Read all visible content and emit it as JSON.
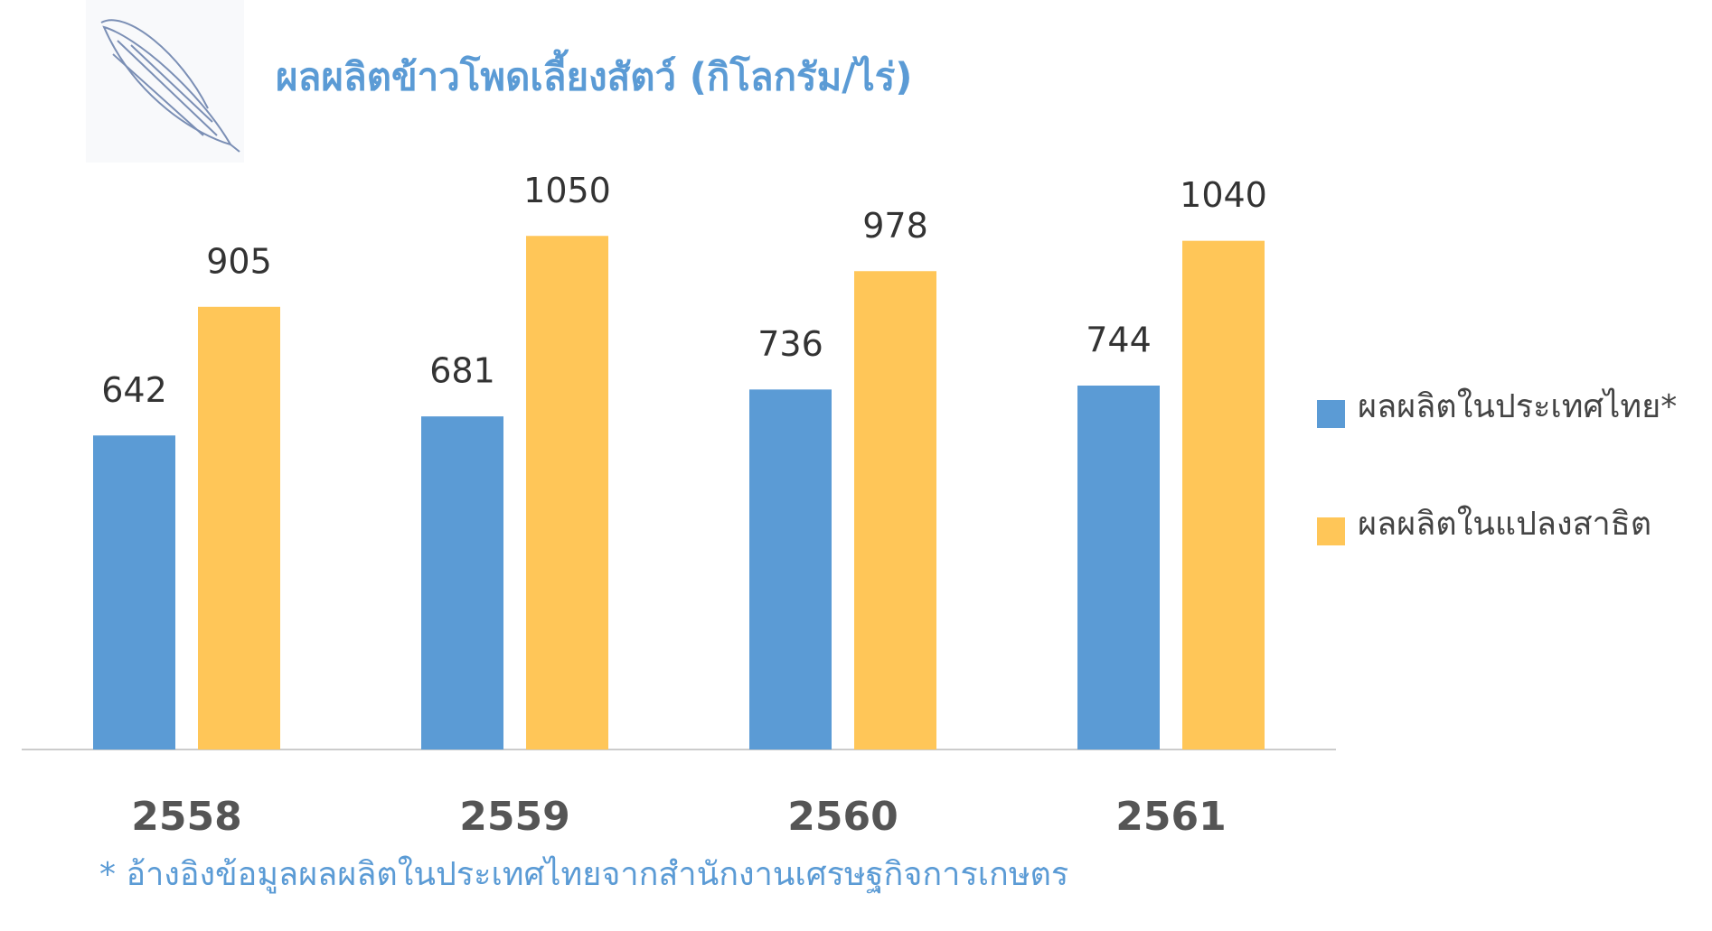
{
  "chart_data": {
    "type": "bar",
    "title": "ผลผลิตข้าวโพดเลี้ยงสัตว์ (กิโลกรัม/ไร่)",
    "categories": [
      "2558",
      "2559",
      "2560",
      "2561"
    ],
    "series": [
      {
        "name": "ผลผลิตในประเทศไทย*",
        "color": "#5b9bd5",
        "values": [
          642,
          681,
          736,
          744
        ]
      },
      {
        "name": "ผลผลิตในแปลงสาธิต",
        "color": "#ffc658",
        "values": [
          905,
          1050,
          978,
          1040
        ]
      }
    ],
    "ylim": [
      0,
      1200
    ],
    "legend": "right",
    "footnote": "* อ้างอิงข้อมูลผลผลิตในประเทศไทยจากสำนักงานเศรษฐกิจการเกษตร"
  }
}
